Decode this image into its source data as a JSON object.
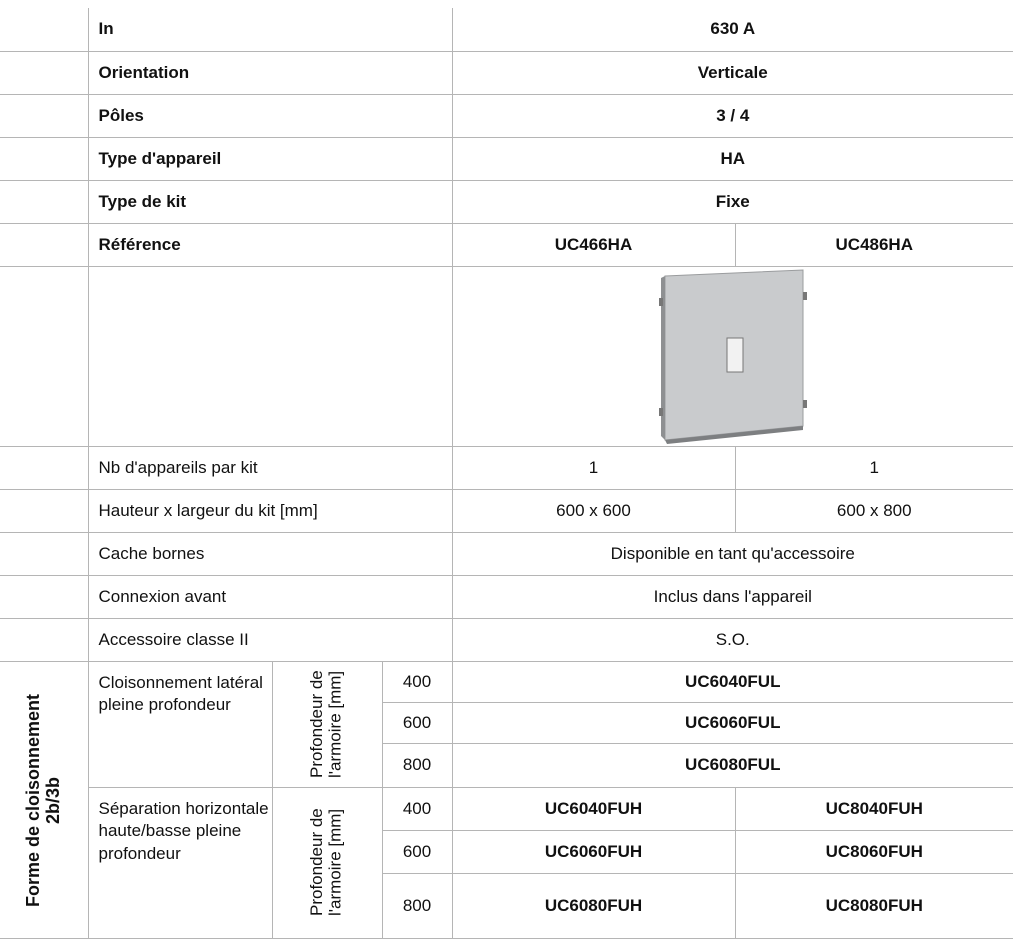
{
  "header_rows": [
    [
      "In",
      "630 A"
    ],
    [
      "Orientation",
      "Verticale"
    ],
    [
      "Pôles",
      "3 / 4"
    ],
    [
      "Type d'appareil",
      "HA"
    ],
    [
      "Type de kit",
      "Fixe"
    ],
    [
      "Référence",
      "UC466HA",
      "UC486HA"
    ]
  ],
  "spec_rows": [
    [
      "Nb d'appareils par kit",
      "1",
      "1"
    ],
    [
      "Hauteur x largeur du kit [mm]",
      "600 x 600",
      "600 x 800"
    ],
    [
      "Cache bornes",
      "Disponible en tant qu'accessoire"
    ],
    [
      "Connexion avant",
      "Inclus dans l'appareil"
    ],
    [
      "Accessoire classe II",
      "S.O."
    ]
  ],
  "partition": {
    "title": "Forme de cloisonnement 2b/3b",
    "groups": [
      {
        "name": "Cloisonnement latéral pleine profondeur",
        "depth_label": "Profondeur de l'armoire [mm]",
        "rows": [
          [
            "400",
            "UC6040FUL"
          ],
          [
            "600",
            "UC6060FUL"
          ],
          [
            "800",
            "UC6080FUL"
          ]
        ]
      },
      {
        "name": "Séparation horizontale haute/basse pleine profondeur",
        "depth_label": "Profondeur de l'armoire [mm]",
        "rows": [
          [
            "400",
            "UC6040FUH",
            "UC8040FUH"
          ],
          [
            "600",
            "UC6060FUH",
            "UC8060FUH"
          ],
          [
            "800",
            "UC6080FUH",
            "UC8080FUH"
          ]
        ]
      }
    ]
  }
}
